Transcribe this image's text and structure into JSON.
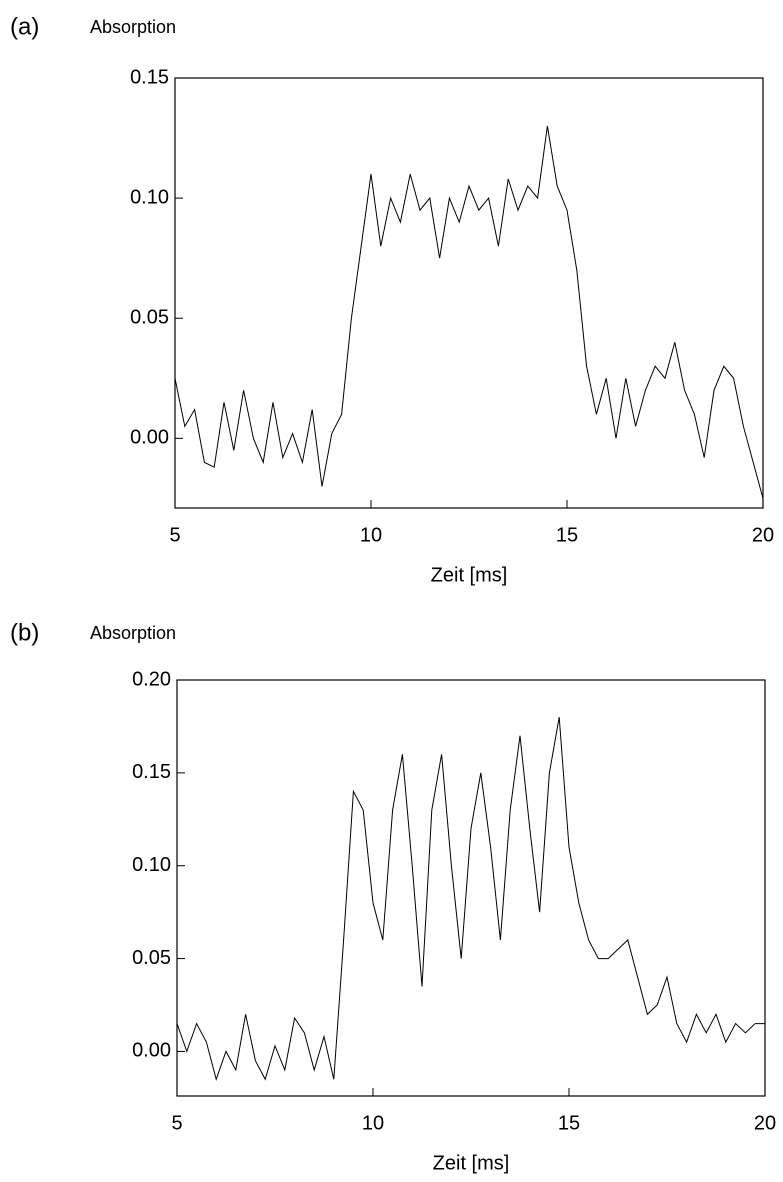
{
  "chart_data": [
    {
      "type": "line",
      "label": "(a)",
      "ylabel": "Absorption",
      "xlabel": "Zeit [ms]",
      "x": [
        5,
        5.25,
        5.5,
        5.75,
        6,
        6.25,
        6.5,
        6.75,
        7,
        7.25,
        7.5,
        7.75,
        8,
        8.25,
        8.5,
        8.75,
        9,
        9.25,
        9.5,
        9.75,
        10,
        10.25,
        10.5,
        10.75,
        11,
        11.25,
        11.5,
        11.75,
        12,
        12.25,
        12.5,
        12.75,
        13,
        13.25,
        13.5,
        13.75,
        14,
        14.25,
        14.5,
        14.75,
        15,
        15.25,
        15.5,
        15.75,
        16,
        16.25,
        16.5,
        16.75,
        17,
        17.25,
        17.5,
        17.75,
        18,
        18.25,
        18.5,
        18.75,
        19,
        19.25,
        19.5,
        19.75,
        20
      ],
      "series": [
        {
          "color": "#000000",
          "values": [
            0.025,
            0.005,
            0.012,
            -0.01,
            -0.012,
            0.015,
            -0.005,
            0.02,
            0.0,
            -0.01,
            0.015,
            -0.008,
            0.002,
            -0.01,
            0.012,
            -0.02,
            0.002,
            0.01,
            0.05,
            0.08,
            0.11,
            0.08,
            0.1,
            0.09,
            0.11,
            0.095,
            0.1,
            0.075,
            0.1,
            0.09,
            0.105,
            0.095,
            0.1,
            0.08,
            0.108,
            0.095,
            0.105,
            0.1,
            0.13,
            0.105,
            0.095,
            0.07,
            0.03,
            0.01,
            0.025,
            0.0,
            0.025,
            0.005,
            0.02,
            0.03,
            0.025,
            0.04,
            0.02,
            0.01,
            -0.008,
            0.02,
            0.03,
            0.025,
            0.005,
            -0.01,
            -0.025
          ]
        }
      ],
      "xlim": [
        5,
        20
      ],
      "xticks": [
        5,
        10,
        15,
        20
      ],
      "ylim": [
        -0.029,
        0.15
      ],
      "yticks": [
        {
          "value": 0.0,
          "label": "0.00"
        },
        {
          "value": 0.05,
          "label": "0.05"
        },
        {
          "value": 0.1,
          "label": "0.10"
        },
        {
          "value": 0.15,
          "label": "0.15"
        }
      ]
    },
    {
      "type": "line",
      "label": "(b)",
      "ylabel": "Absorption",
      "xlabel": "Zeit [ms]",
      "x": [
        5,
        5.25,
        5.5,
        5.75,
        6,
        6.25,
        6.5,
        6.75,
        7,
        7.25,
        7.5,
        7.75,
        8,
        8.25,
        8.5,
        8.75,
        9,
        9.25,
        9.5,
        9.75,
        10,
        10.25,
        10.5,
        10.75,
        11,
        11.25,
        11.5,
        11.75,
        12,
        12.25,
        12.5,
        12.75,
        13,
        13.25,
        13.5,
        13.75,
        14,
        14.25,
        14.5,
        14.75,
        15,
        15.25,
        15.5,
        15.75,
        16,
        16.25,
        16.5,
        16.75,
        17,
        17.25,
        17.5,
        17.75,
        18,
        18.25,
        18.5,
        18.75,
        19,
        19.25,
        19.5,
        19.75,
        20
      ],
      "series": [
        {
          "color": "#000000",
          "values": [
            0.015,
            0.0,
            0.015,
            0.005,
            -0.015,
            0.0,
            -0.01,
            0.02,
            -0.005,
            -0.015,
            0.003,
            -0.01,
            0.018,
            0.01,
            -0.01,
            0.008,
            -0.015,
            0.06,
            0.14,
            0.13,
            0.08,
            0.06,
            0.13,
            0.16,
            0.1,
            0.035,
            0.13,
            0.16,
            0.1,
            0.05,
            0.12,
            0.15,
            0.11,
            0.06,
            0.13,
            0.17,
            0.12,
            0.075,
            0.15,
            0.18,
            0.11,
            0.08,
            0.06,
            0.05,
            0.05,
            0.055,
            0.06,
            0.04,
            0.02,
            0.025,
            0.04,
            0.015,
            0.005,
            0.02,
            0.01,
            0.02,
            0.005,
            0.015,
            0.01,
            0.015,
            0.015
          ]
        }
      ],
      "xlim": [
        5,
        20
      ],
      "xticks": [
        5,
        10,
        15,
        20
      ],
      "ylim": [
        -0.024,
        0.2
      ],
      "yticks": [
        {
          "value": 0.0,
          "label": "0.00"
        },
        {
          "value": 0.05,
          "label": "0.05"
        },
        {
          "value": 0.1,
          "label": "0.10"
        },
        {
          "value": 0.15,
          "label": "0.15"
        },
        {
          "value": 0.2,
          "label": "0.20"
        }
      ]
    }
  ]
}
